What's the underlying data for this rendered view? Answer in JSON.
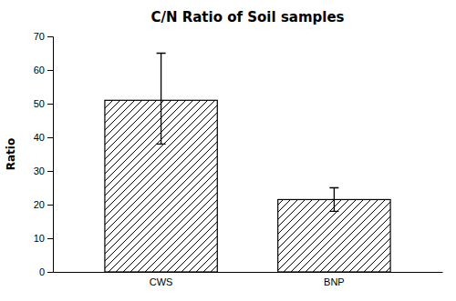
{
  "chart_data": {
    "type": "bar",
    "title": "C/N Ratio of Soil samples",
    "ylabel": "Ratio",
    "categories": [
      "CWS",
      "BNP"
    ],
    "values": [
      51.0,
      21.5
    ],
    "errors_up": [
      14.0,
      3.5
    ],
    "errors_down": [
      13.0,
      3.5
    ],
    "color": "#ffffff",
    "ylim": [
      0,
      70
    ],
    "yticks": [
      0,
      10,
      20,
      30,
      40,
      50,
      60,
      70
    ],
    "grid": false
  }
}
